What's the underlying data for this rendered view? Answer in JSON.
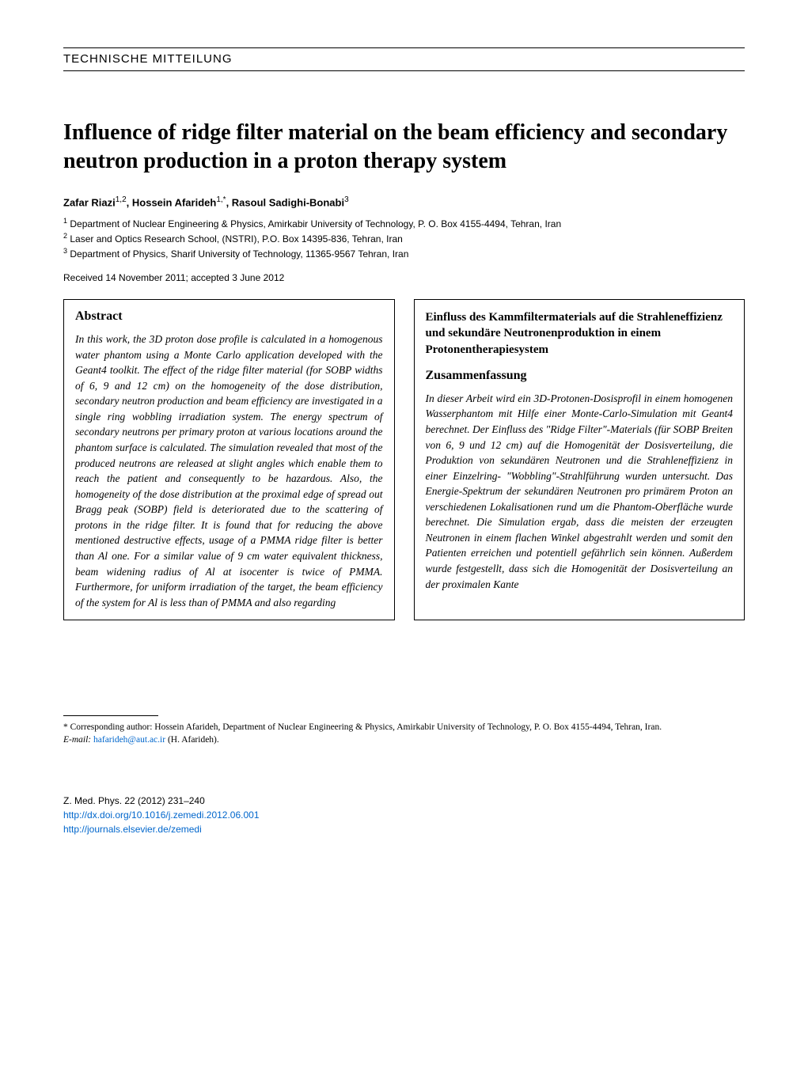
{
  "header_band": "TECHNISCHE MITTEILUNG",
  "title": "Influence of ridge filter material on the beam efficiency and secondary neutron production in a proton therapy system",
  "authors_html": "Zafar Riazi|1,2|, Hossein Afarideh|1,*|, Rasoul Sadighi-Bonabi|3|",
  "authors": [
    {
      "name": "Zafar Riazi",
      "sup": "1,2"
    },
    {
      "name": "Hossein Afarideh",
      "sup": "1,*"
    },
    {
      "name": "Rasoul Sadighi-Bonabi",
      "sup": "3"
    }
  ],
  "affiliations": [
    {
      "sup": "1",
      "text": "Department of Nuclear Engineering & Physics, Amirkabir University of Technology, P. O. Box 4155-4494, Tehran, Iran"
    },
    {
      "sup": "2",
      "text": "Laser and Optics Research School, (NSTRI), P.O. Box 14395-836, Tehran, Iran"
    },
    {
      "sup": "3",
      "text": "Department of Physics, Sharif University of Technology, 11365-9567 Tehran, Iran"
    }
  ],
  "dates": "Received 14 November 2011; accepted 3 June 2012",
  "abstract": {
    "heading": "Abstract",
    "body": "In this work, the 3D proton dose profile is calculated in a homogenous water phantom using a Monte Carlo application developed with the Geant4 toolkit. The effect of the ridge filter material (for SOBP widths of 6, 9 and 12 cm) on the homogeneity of the dose distribution, secondary neutron production and beam efficiency are investigated in a single ring wobbling irradiation system. The energy spectrum of secondary neutrons per primary proton at various locations around the phantom surface is calculated. The simulation revealed that most of the produced neutrons are released at slight angles which enable them to reach the patient and consequently to be hazardous. Also, the homogeneity of the dose distribution at the proximal edge of spread out Bragg peak (SOBP) field is deteriorated due to the scattering of protons in the ridge filter. It is found that for reducing the above mentioned destructive effects, usage of a PMMA ridge filter is better than Al one. For a similar value of 9 cm water equivalent thickness, beam widening radius of Al at isocenter is twice of PMMA. Furthermore, for uniform irradiation of the target, the beam efficiency of the system for Al is less than of PMMA and also regarding"
  },
  "abstract_de": {
    "title": "Einfluss des Kammfiltermaterials auf die Strahleneffizienz und sekundäre Neutronenproduktion in einem Protonentherapiesystem",
    "heading": "Zusammenfassung",
    "body": "In dieser Arbeit wird ein 3D-Protonen-Dosisprofil in einem homogenen Wasserphantom mit Hilfe einer Monte-Carlo-Simulation mit Geant4 berechnet. Der Einfluss des \"Ridge Filter\"-Materials (für SOBP Breiten von 6, 9 und 12 cm) auf die Homogenität der Dosisverteilung, die Produktion von sekundären Neutronen und die Strahleneffizienz in einer Einzelring- \"Wobbling\"-Strahlführung wurden untersucht. Das Energie-Spektrum der sekundären Neutronen pro primärem Proton an verschiedenen Lokalisationen rund um die Phantom-Oberfläche wurde berechnet. Die Simulation ergab, dass die meisten der erzeugten Neutronen in einem flachen Winkel abgestrahlt werden und somit den Patienten erreichen und potentiell gefährlich sein können. Außerdem wurde festgestellt, dass sich die Homogenität der Dosisverteilung an der proximalen Kante"
  },
  "footnote": {
    "corr": "* Corresponding author: Hossein Afarideh, Department of Nuclear Engineering & Physics, Amirkabir University of Technology, P. O. Box 4155-4494, Tehran, Iran.",
    "email_label": "E-mail:",
    "email": "hafarideh@aut.ac.ir",
    "email_name": "(H. Afarideh)."
  },
  "footer": {
    "citation": "Z. Med. Phys. 22 (2012) 231–240",
    "doi": "http://dx.doi.org/10.1016/j.zemedi.2012.06.001",
    "journal_url": "http://journals.elsevier.de/zemedi"
  },
  "colors": {
    "link": "#0066cc",
    "text": "#000000",
    "bg": "#ffffff"
  }
}
